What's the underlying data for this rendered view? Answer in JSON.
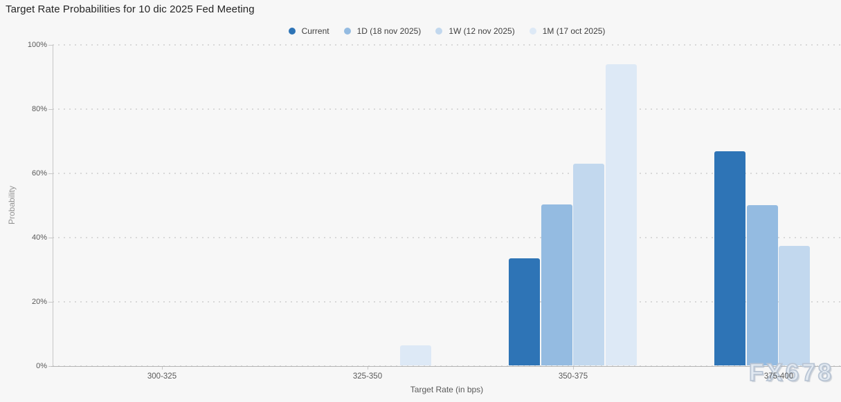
{
  "title": "Target Rate Probabilities for 10 dic 2025 Fed Meeting",
  "watermark": "FX678",
  "colors": {
    "background": "#f7f7f7",
    "grid": "#d8d8d8",
    "axis": "#b3b3b3",
    "tick_text": "#595959"
  },
  "chart_data": {
    "type": "bar",
    "title": "Target Rate Probabilities for 10 dic 2025 Fed Meeting",
    "xlabel": "Target Rate (in bps)",
    "ylabel": "Probability",
    "ylim": [
      0,
      100
    ],
    "yticks": [
      0,
      20,
      40,
      60,
      80,
      100
    ],
    "ytick_labels": [
      "0%",
      "20%",
      "40%",
      "60%",
      "80%",
      "100%"
    ],
    "categories": [
      "300-325",
      "325-350",
      "350-375",
      "375-400"
    ],
    "series": [
      {
        "name": "Current",
        "color": "#2e74b6",
        "values": [
          0,
          0,
          33.4,
          66.6
        ]
      },
      {
        "name": "1D (18 nov 2025)",
        "color": "#94bbe1",
        "values": [
          0,
          0,
          50.1,
          49.9
        ]
      },
      {
        "name": "1W (12 nov 2025)",
        "color": "#c2d8ee",
        "values": [
          0,
          0,
          62.7,
          37.3
        ]
      },
      {
        "name": "1M (17 oct 2025)",
        "color": "#dde9f6",
        "values": [
          0,
          6.3,
          93.7,
          0
        ]
      }
    ],
    "legend_position": "top-center",
    "grid": "dotted-horizontal"
  }
}
